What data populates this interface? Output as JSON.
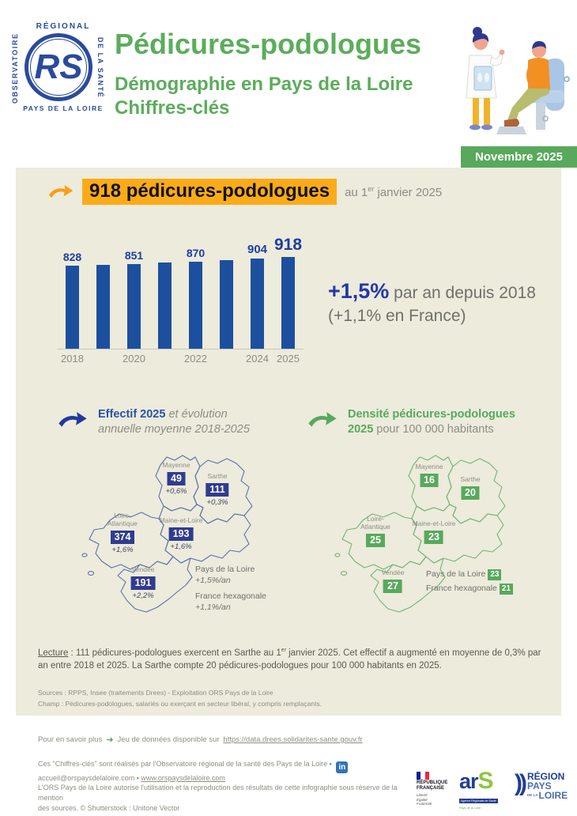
{
  "page": {
    "date_badge": "Novembre 2025"
  },
  "header": {
    "logo": {
      "top": "RÉGIONAL",
      "left": "OBSERVATOIRE",
      "right": "DE LA SANTÉ",
      "bottom": "PAYS DE LA LOIRE",
      "monogram": "RS"
    },
    "title": "Pédicures-podologues",
    "subtitle1": "Démographie en Pays de la Loire",
    "subtitle2": "Chiffres-clés"
  },
  "highlight": {
    "text": "918 pédicures-podologues",
    "date_pre": "au 1",
    "date_sup": "er",
    "date_post": " janvier 2025"
  },
  "chart_data": {
    "type": "bar",
    "x": [
      "2018",
      "2019",
      "2020",
      "2021",
      "2022",
      "2023",
      "2024",
      "2025"
    ],
    "values": [
      828,
      840,
      851,
      861,
      870,
      886,
      904,
      918
    ],
    "data_labels": [
      "828",
      "",
      "851",
      "",
      "870",
      "",
      "904",
      "918"
    ],
    "x_tick_labels": [
      "2018",
      "",
      "2020",
      "",
      "2022",
      "",
      "2024",
      "2025"
    ],
    "note": "bars for 2019, 2021, 2023 are unlabeled in the figure; their values are estimated from bar heights",
    "bar_color": "#1d4f9f",
    "ylim": [
      0,
      918
    ],
    "grid": false,
    "legend": false
  },
  "growth": {
    "value": "+1,5%",
    "text": " par an depuis 2018",
    "line2": "(+1,1% en France)"
  },
  "map_effectif": {
    "title_strong": "Effectif 2025",
    "title_italic": " et évolution",
    "title_line2": "annuelle moyenne 2018-2025",
    "departments": [
      {
        "name": "Mayenne",
        "value": "49",
        "evolution": "+0,6%"
      },
      {
        "name": "Sarthe",
        "value": "111",
        "evolution": "+0,3%"
      },
      {
        "name": "Loire-Atlantique",
        "value": "374",
        "evolution": "+1,6%"
      },
      {
        "name": "Maine-et-Loire",
        "value": "193",
        "evolution": "+1,6%"
      },
      {
        "name": "Vendée",
        "value": "191",
        "evolution": "+2,2%"
      }
    ],
    "summary": [
      {
        "label": "Pays de la Loire",
        "value": "+1,5%/an"
      },
      {
        "label": "France hexagonale",
        "value": "+1,1%/an"
      }
    ]
  },
  "map_densite": {
    "title_line1": "Densité pédicures-podologues",
    "title_strong": "2025",
    "title_rest": " pour 100 000 habitants",
    "departments": [
      {
        "name": "Mayenne",
        "value": "16"
      },
      {
        "name": "Sarthe",
        "value": "20"
      },
      {
        "name": "Loire-Atlantique",
        "value": "25"
      },
      {
        "name": "Maine-et-Loire",
        "value": "23"
      },
      {
        "name": "Vendée",
        "value": "27"
      }
    ],
    "summary": [
      {
        "label": "Pays de la Loire",
        "value": "23"
      },
      {
        "label": "France hexagonale",
        "value": "21"
      }
    ]
  },
  "lecture": {
    "label": "Lecture",
    "part1": " : 111 pédicures-podologues exercent en Sarthe au 1",
    "sup": "er",
    "part2": " janvier 2025. Cet effectif a augmenté en moyenne de 0,3% par an entre 2018 et 2025. La Sarthe compte 20 pédicures-podologues pour 100 000 habitants en 2025."
  },
  "sources": {
    "line1": "Sources : RPPS, Insee (traitements Drees) - Exploitation ORS Pays de la Loire",
    "line2": "Champ : Pédicures-podologues, salariés ou exerçant en secteur libéral, y compris remplaçants."
  },
  "footer": {
    "savoir_label": "Pour en savoir plus",
    "savoir_text": "Jeu de données disponible sur",
    "savoir_link": "https://data.drees.solidarites-sante.gouv.fr",
    "credits1": "Ces \"Chiffres-clés\" sont réalisés par l'Observatoire régional de la santé des Pays de la Loire",
    "bullet": "•",
    "linkedin": "in",
    "email": "accueil@orspaysdelaloire.com",
    "website": "www.orspaysdelaloire.com",
    "license1": "L'ORS Pays de la Loire autorise l'utilisation et la reproduction des résultats de cette infographie sous réserve de la mention",
    "license2": "des sources. © Shutterstock : Unitone Vector",
    "logos": {
      "rf1": "RÉPUBLIQUE",
      "rf2": "FRANÇAISE",
      "rf_motto1": "Liberté",
      "rf_motto2": "Égalité",
      "rf_motto3": "Fraternité",
      "ars_a": "ar",
      "ars_s": "S",
      "ars_sub1": "Agence Régionale de Santé",
      "ars_sub2": "Pays de la Loire",
      "region1": "RÉGION",
      "region2": "PAYS",
      "region3a": "DE LA",
      "region3b": "LOIRE",
      "region_marks": "))"
    }
  },
  "colors": {
    "green": "#58a95c",
    "title_green": "#5bad5b",
    "bar_blue": "#1d4f9f",
    "badge_blue": "#303c8f",
    "highlight_orange": "#fbab18",
    "background_beige": "#ecebdc"
  }
}
